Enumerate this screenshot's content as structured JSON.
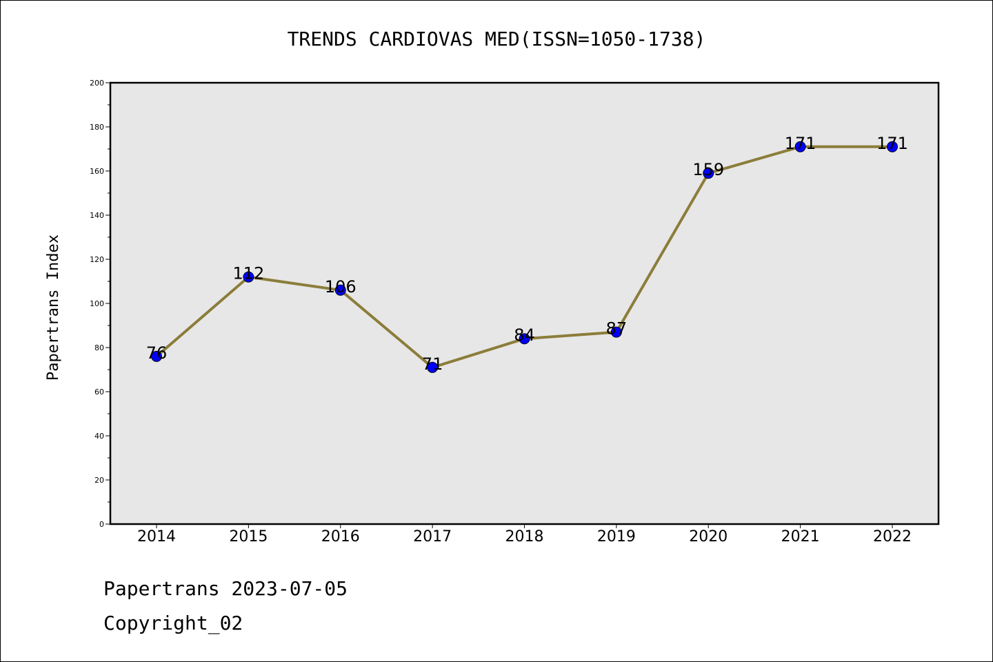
{
  "chart_data": {
    "type": "line",
    "title": "TRENDS CARDIOVAS MED(ISSN=1050-1738)",
    "xlabel": "",
    "ylabel": "Papertrans Index",
    "categories": [
      "2014",
      "2015",
      "2016",
      "2017",
      "2018",
      "2019",
      "2020",
      "2021",
      "2022"
    ],
    "values": [
      76,
      112,
      106,
      71,
      84,
      87,
      159,
      171,
      171
    ],
    "ylim": [
      0,
      200
    ],
    "yticks": [
      0,
      20,
      40,
      60,
      80,
      100,
      120,
      140,
      160,
      180,
      200
    ],
    "grid": false,
    "line_color": "#8B7D3A",
    "marker_color": "#0000FF",
    "plot_background": "#E7E7E7"
  },
  "footer": {
    "line1": "Papertrans 2023-07-05",
    "line2": "Copyright_02"
  }
}
